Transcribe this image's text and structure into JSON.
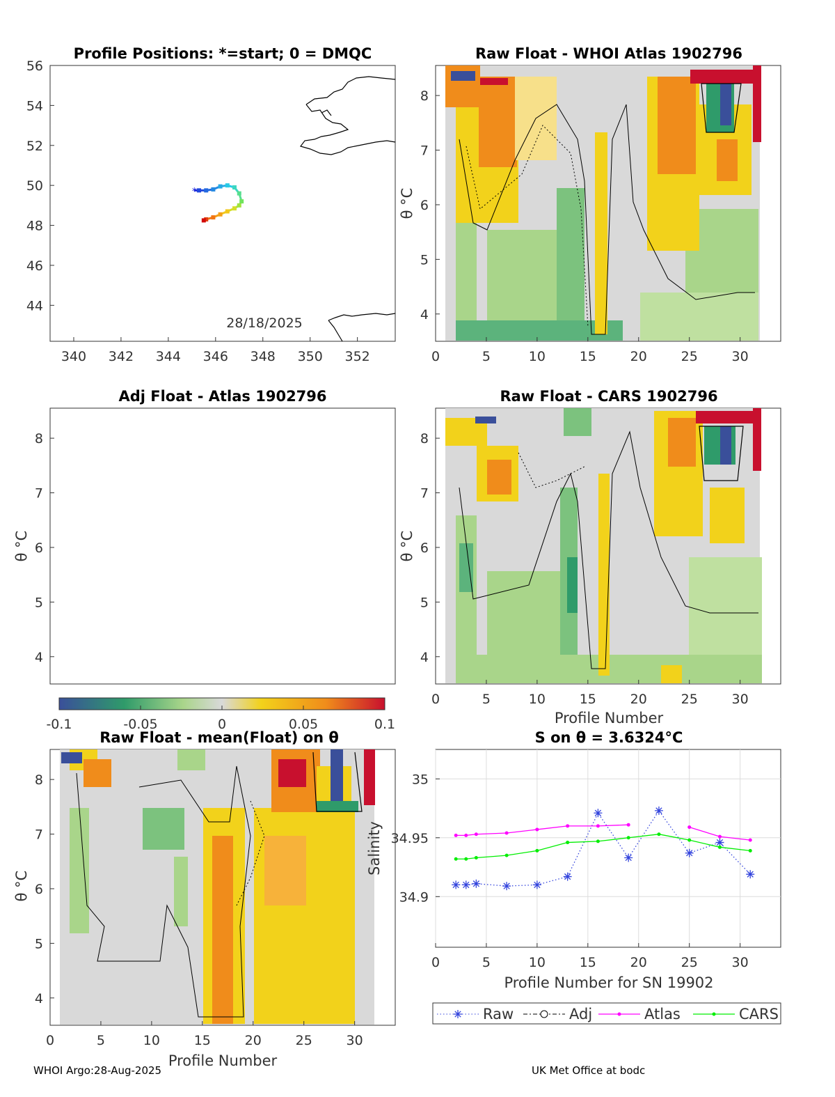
{
  "footer": {
    "left": "WHOI Argo:28-Aug-2025",
    "right": "UK Met Office at bodc"
  },
  "colors": {
    "neg_strong": "#3a4f9a",
    "neg": "#2f9b6a",
    "neg_light": "#a9d58a",
    "zero": "#d9d9d9",
    "pos_light": "#f2d21b",
    "pos": "#f08c1b",
    "pos_strong": "#c8102e",
    "raw": "#3344dd",
    "atlas": "#ff00ff",
    "cars": "#00ee00"
  },
  "chart_data": [
    {
      "id": "map",
      "type": "scatter",
      "title": "Profile Positions: *=start; 0 = DMQC",
      "xlim": [
        339,
        353.6
      ],
      "ylim": [
        42.2,
        56
      ],
      "xticks": [
        340,
        342,
        344,
        346,
        348,
        350,
        352
      ],
      "yticks": [
        44,
        46,
        48,
        50,
        52,
        54,
        56
      ],
      "annotation": "28/18/2025",
      "track": {
        "lon": [
          345.1,
          345.3,
          345.6,
          345.9,
          346.2,
          346.5,
          346.8,
          347.0,
          347.1,
          347.0,
          346.8,
          346.5,
          346.2,
          345.9,
          345.6,
          345.5
        ],
        "lat": [
          49.75,
          49.75,
          49.75,
          49.8,
          49.95,
          50.0,
          49.9,
          49.6,
          49.2,
          49.0,
          48.85,
          48.7,
          48.55,
          48.4,
          48.3,
          48.25
        ]
      }
    },
    {
      "id": "whoi",
      "type": "heatmap",
      "title": "Raw Float - WHOI Atlas  1902796",
      "xlabel": "",
      "ylabel": "θ °C",
      "xlim": [
        0,
        34
      ],
      "ylim": [
        3.5,
        8.55
      ],
      "xticks": [
        0,
        5,
        10,
        15,
        20,
        25,
        30
      ],
      "yticks": [
        4,
        5,
        6,
        7,
        8
      ]
    },
    {
      "id": "adj",
      "type": "heatmap",
      "title": "Adj Float - Atlas  1902796",
      "xlabel": "",
      "ylabel": "θ °C",
      "xlim": [
        0,
        34
      ],
      "ylim": [
        3.5,
        8.55
      ],
      "xticks": [],
      "yticks": [
        4,
        5,
        6,
        7,
        8
      ]
    },
    {
      "id": "cars",
      "type": "heatmap",
      "title": "Raw Float - CARS  1902796",
      "xlabel": "Profile Number",
      "ylabel": "θ °C",
      "xlim": [
        0,
        34
      ],
      "ylim": [
        3.5,
        8.55
      ],
      "xticks": [
        0,
        5,
        10,
        15,
        20,
        25,
        30
      ],
      "yticks": [
        4,
        5,
        6,
        7,
        8
      ]
    },
    {
      "id": "colorbar",
      "type": "heatmap",
      "range": [
        -0.1,
        0.1
      ],
      "tick_labels": [
        "-0.1",
        "-0.05",
        "0",
        "0.05",
        "0.1"
      ]
    },
    {
      "id": "mean",
      "type": "heatmap",
      "title": "Raw Float - mean(Float) on θ",
      "xlabel": "Profile Number",
      "ylabel": "θ °C",
      "xlim": [
        0,
        34
      ],
      "ylim": [
        3.5,
        8.55
      ],
      "xticks": [
        0,
        5,
        10,
        15,
        20,
        25,
        30
      ],
      "yticks": [
        4,
        5,
        6,
        7,
        8
      ]
    },
    {
      "id": "salinity",
      "type": "line",
      "title": "S on θ = 3.6324°C",
      "xlabel": "Profile Number for SN 19902",
      "ylabel": "Salinity",
      "xlim": [
        0,
        34
      ],
      "ylim": [
        34.857,
        35.025
      ],
      "xticks": [
        0,
        5,
        10,
        15,
        20,
        25,
        30
      ],
      "yticks": [
        34.9,
        34.95,
        35
      ],
      "ytick_labels": [
        "34.9",
        "34.95",
        "35"
      ],
      "grid": true,
      "legend": "bottom",
      "series": [
        {
          "name": "Raw",
          "x": [
            2,
            3,
            4,
            7,
            10,
            13,
            16,
            19,
            22,
            25,
            28,
            31
          ],
          "values": [
            34.91,
            34.91,
            34.911,
            34.909,
            34.91,
            34.917,
            34.971,
            34.933,
            34.973,
            34.937,
            34.946,
            34.919
          ]
        },
        {
          "name": "Adj",
          "x": [],
          "values": []
        },
        {
          "name": "Atlas",
          "x": [
            2,
            3,
            4,
            7,
            10,
            13,
            16,
            19,
            25,
            28,
            31
          ],
          "values": [
            34.952,
            34.952,
            34.953,
            34.954,
            34.957,
            34.96,
            34.96,
            34.961,
            34.959,
            34.951,
            34.948
          ]
        },
        {
          "name": "CARS",
          "x": [
            2,
            3,
            4,
            7,
            10,
            13,
            16,
            19,
            22,
            25,
            28,
            31
          ],
          "values": [
            34.932,
            34.932,
            34.933,
            34.935,
            34.939,
            34.946,
            34.947,
            34.95,
            34.953,
            34.948,
            34.942,
            34.939
          ]
        }
      ]
    }
  ]
}
